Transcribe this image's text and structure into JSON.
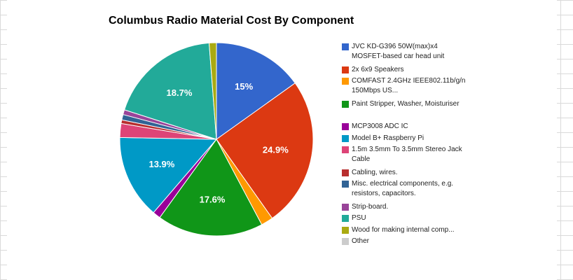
{
  "chart_data": {
    "type": "pie",
    "title": "Columbus Radio Material Cost By Component",
    "slices": [
      {
        "label": "JVC KD-G396 50W(max)x4 MOSFET-based car head unit",
        "value": 15.0,
        "color": "#3366cc",
        "data_label": "15%"
      },
      {
        "label": "2x 6x9 Speakers",
        "value": 24.9,
        "color": "#dc3912",
        "data_label": "24.9%"
      },
      {
        "label": "COMFAST 2.4GHz IEEE802.11b/g/n 150Mbps US...",
        "value": 2.0,
        "color": "#ff9900",
        "data_label": ""
      },
      {
        "label": "Paint Stripper, Washer, Moisturiser",
        "value": 17.6,
        "color": "#109618",
        "data_label": "17.6%"
      },
      {
        "label": "MCP3008 ADC IC",
        "value": 1.3,
        "color": "#990099",
        "data_label": ""
      },
      {
        "label": "Model B+ Raspberry Pi",
        "value": 13.9,
        "color": "#0099c6",
        "data_label": "13.9%"
      },
      {
        "label": "1.5m 3.5mm To 3.5mm Stereo Jack Cable",
        "value": 2.3,
        "color": "#dd4477",
        "data_label": ""
      },
      {
        "label": "Cabling, wires.",
        "value": 0.6,
        "color": "#b82e2e",
        "data_label": ""
      },
      {
        "label": "Misc. electrical components, e.g. resistors, capacitors.",
        "value": 0.9,
        "color": "#316395",
        "data_label": ""
      },
      {
        "label": "Strip-board.",
        "value": 0.8,
        "color": "#994499",
        "data_label": ""
      },
      {
        "label": "PSU",
        "value": 18.7,
        "color": "#22aa99",
        "data_label": "18.7%"
      },
      {
        "label": "Wood for making internal comp...",
        "value": 1.2,
        "color": "#aaaa11",
        "data_label": ""
      },
      {
        "label": "Other",
        "value": 0.0,
        "color": "#cccccc",
        "data_label": ""
      }
    ],
    "legend_position": "right"
  }
}
